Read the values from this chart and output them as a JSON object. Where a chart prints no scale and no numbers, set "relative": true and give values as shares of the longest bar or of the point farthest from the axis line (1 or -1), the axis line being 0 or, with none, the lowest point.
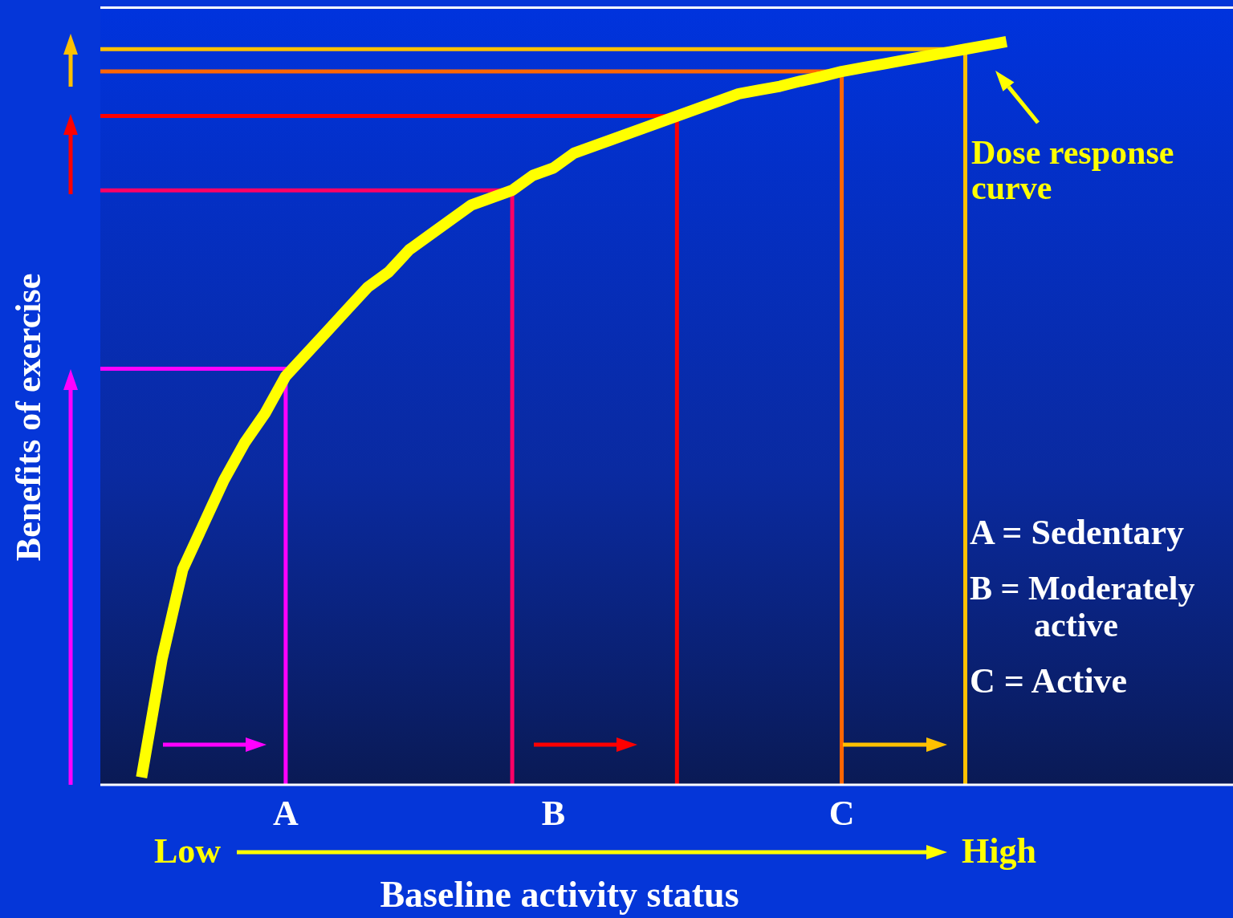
{
  "chart_data": {
    "type": "line",
    "relative": true,
    "xlabel": "Baseline activity status",
    "ylabel": "Benefits of exercise",
    "categories": [
      null,
      null,
      null,
      null,
      null,
      null,
      null,
      null,
      null,
      "A",
      null,
      null,
      null,
      null,
      null,
      null,
      null,
      null,
      null,
      null,
      null,
      null,
      "B",
      null,
      null,
      null,
      null,
      null,
      null,
      null,
      null,
      null,
      null,
      null,
      null,
      null,
      "C",
      null,
      null,
      null,
      null,
      null,
      null,
      null,
      null,
      null,
      null,
      null,
      null,
      null,
      null,
      null,
      null,
      null,
      null,
      null
    ],
    "series": [
      {
        "type": "step",
        "color": "#ff00ff",
        "values": [
          0.56,
          0.56,
          0.56,
          0.56,
          0.56,
          0.56,
          0.56,
          0.56,
          0.56,
          0,
          null,
          null,
          null,
          null,
          null,
          null,
          null,
          null,
          null,
          null,
          null,
          null,
          null,
          null,
          null,
          null,
          null,
          null,
          null,
          null,
          null,
          null,
          null,
          null,
          null,
          null,
          null,
          null,
          null,
          null,
          null,
          null,
          null,
          null,
          null,
          null,
          null,
          null,
          null,
          null,
          null,
          null,
          null,
          null,
          null,
          null
        ]
      },
      {
        "type": "step",
        "color": "#ff0066",
        "values": [
          0.8,
          0.8,
          0.8,
          0.8,
          0.8,
          0.8,
          0.8,
          0.8,
          0.8,
          0.8,
          0.8,
          0.8,
          0.8,
          0.8,
          0.8,
          0.8,
          0.8,
          0.8,
          0.8,
          0.8,
          0,
          null,
          null,
          null,
          null,
          null,
          null,
          null,
          null,
          null,
          null,
          null,
          null,
          null,
          null,
          null,
          null,
          null,
          null,
          null,
          null,
          null,
          null,
          null,
          null,
          null,
          null,
          null,
          null,
          null,
          null,
          null,
          null,
          null,
          null,
          null
        ]
      },
      {
        "type": "step",
        "color": "#ff0000",
        "values": [
          0.9,
          0.9,
          0.9,
          0.9,
          0.9,
          0.9,
          0.9,
          0.9,
          0.9,
          0.9,
          0.9,
          0.9,
          0.9,
          0.9,
          0.9,
          0.9,
          0.9,
          0.9,
          0.9,
          0.9,
          0.9,
          0.9,
          0.9,
          0.9,
          0.9,
          0.9,
          0.9,
          0.9,
          0,
          null,
          null,
          null,
          null,
          null,
          null,
          null,
          null,
          null,
          null,
          null,
          null,
          null,
          null,
          null,
          null,
          null,
          null,
          null,
          null,
          null,
          null,
          null,
          null,
          null,
          null,
          null
        ]
      },
      {
        "type": "step",
        "color": "#ff6600",
        "values": [
          0.96,
          0.96,
          0.96,
          0.96,
          0.96,
          0.96,
          0.96,
          0.96,
          0.96,
          0.96,
          0.96,
          0.96,
          0.96,
          0.96,
          0.96,
          0.96,
          0.96,
          0.96,
          0.96,
          0.96,
          0.96,
          0.96,
          0.96,
          0.96,
          0.96,
          0.96,
          0.96,
          0.96,
          0.96,
          0.96,
          0.96,
          0.96,
          0.96,
          0.96,
          0.96,
          0.96,
          0,
          null,
          null,
          null,
          null,
          null,
          null,
          null,
          null,
          null,
          null,
          null,
          null,
          null,
          null,
          null,
          null,
          null,
          null,
          null
        ]
      },
      {
        "type": "step",
        "color": "#ffc000",
        "values": [
          0.99,
          0.99,
          0.99,
          0.99,
          0.99,
          0.99,
          0.99,
          0.99,
          0.99,
          0.99,
          0.99,
          0.99,
          0.99,
          0.99,
          0.99,
          0.99,
          0.99,
          0.99,
          0.99,
          0.99,
          0.99,
          0.99,
          0.99,
          0.99,
          0.99,
          0.99,
          0.99,
          0.99,
          0.99,
          0.99,
          0.99,
          0.99,
          0.99,
          0.99,
          0.99,
          0.99,
          0.99,
          0.99,
          0.99,
          0.99,
          0.99,
          0.99,
          0,
          null,
          null,
          null,
          null,
          null,
          null,
          null,
          null,
          null,
          null,
          null,
          null,
          null
        ]
      },
      {
        "type": "line",
        "color": "#ffff00",
        "values": [
          null,
          null,
          0.01,
          0.17,
          0.29,
          0.35,
          0.41,
          0.46,
          0.5,
          0.55,
          0.58,
          0.61,
          0.64,
          0.67,
          0.69,
          0.72,
          0.74,
          0.76,
          0.78,
          0.79,
          0.8,
          0.82,
          0.83,
          0.85,
          0.86,
          0.87,
          0.88,
          0.89,
          0.9,
          0.91,
          0.92,
          0.93,
          0.935,
          0.94,
          0.947,
          0.953,
          0.96,
          0.965,
          0.97,
          0.975,
          0.98,
          0.985,
          0.99,
          0.995,
          1,
          null,
          null,
          null,
          null,
          null,
          null,
          null,
          null,
          null,
          null,
          null
        ]
      }
    ],
    "annotations": [
      "Dose response curve",
      "A = Sedentary",
      "B = Moderately active",
      "C = Active",
      "Low",
      "High"
    ],
    "marker": "none",
    "line_style": "solid"
  }
}
